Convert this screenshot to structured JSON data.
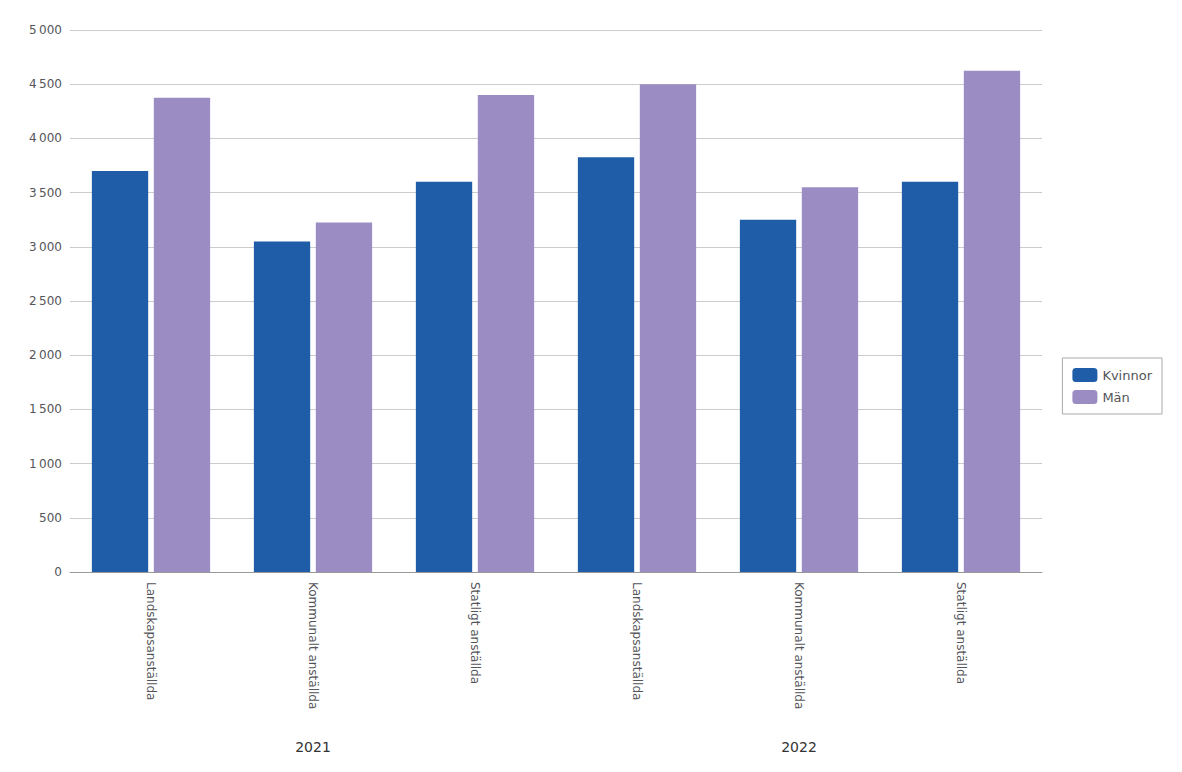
{
  "chart_data": {
    "type": "bar",
    "categories": [
      "Landskapsanställda",
      "Kommunalt anställda",
      "Statligt anställda",
      "Landskapsanställda",
      "Kommunalt anställda",
      "Statligt anställda"
    ],
    "groups": [
      "2021",
      "2022"
    ],
    "series": [
      {
        "name": "Kvinnor",
        "color": "#1F5DA8",
        "values": [
          3700,
          3050,
          3600,
          3825,
          3250,
          3600
        ]
      },
      {
        "name": "Män",
        "color": "#9B8DC4",
        "values": [
          4375,
          3225,
          4400,
          4500,
          3550,
          4625
        ]
      }
    ],
    "ylim": [
      0,
      5000
    ],
    "yticks": [
      0,
      500,
      {
        "value": 1000,
        "label": "1 000"
      },
      {
        "value": 1500,
        "label": "1 500"
      },
      {
        "value": 2000,
        "label": "2 000"
      },
      {
        "value": 2500,
        "label": "2 500"
      },
      {
        "value": 3000,
        "label": "3 000"
      },
      {
        "value": 3500,
        "label": "3 500"
      },
      {
        "value": 4000,
        "label": "4 000"
      },
      {
        "value": 4500,
        "label": "4 500"
      },
      {
        "value": 5000,
        "label": "5 000"
      }
    ],
    "grid": true,
    "legend": "right"
  }
}
